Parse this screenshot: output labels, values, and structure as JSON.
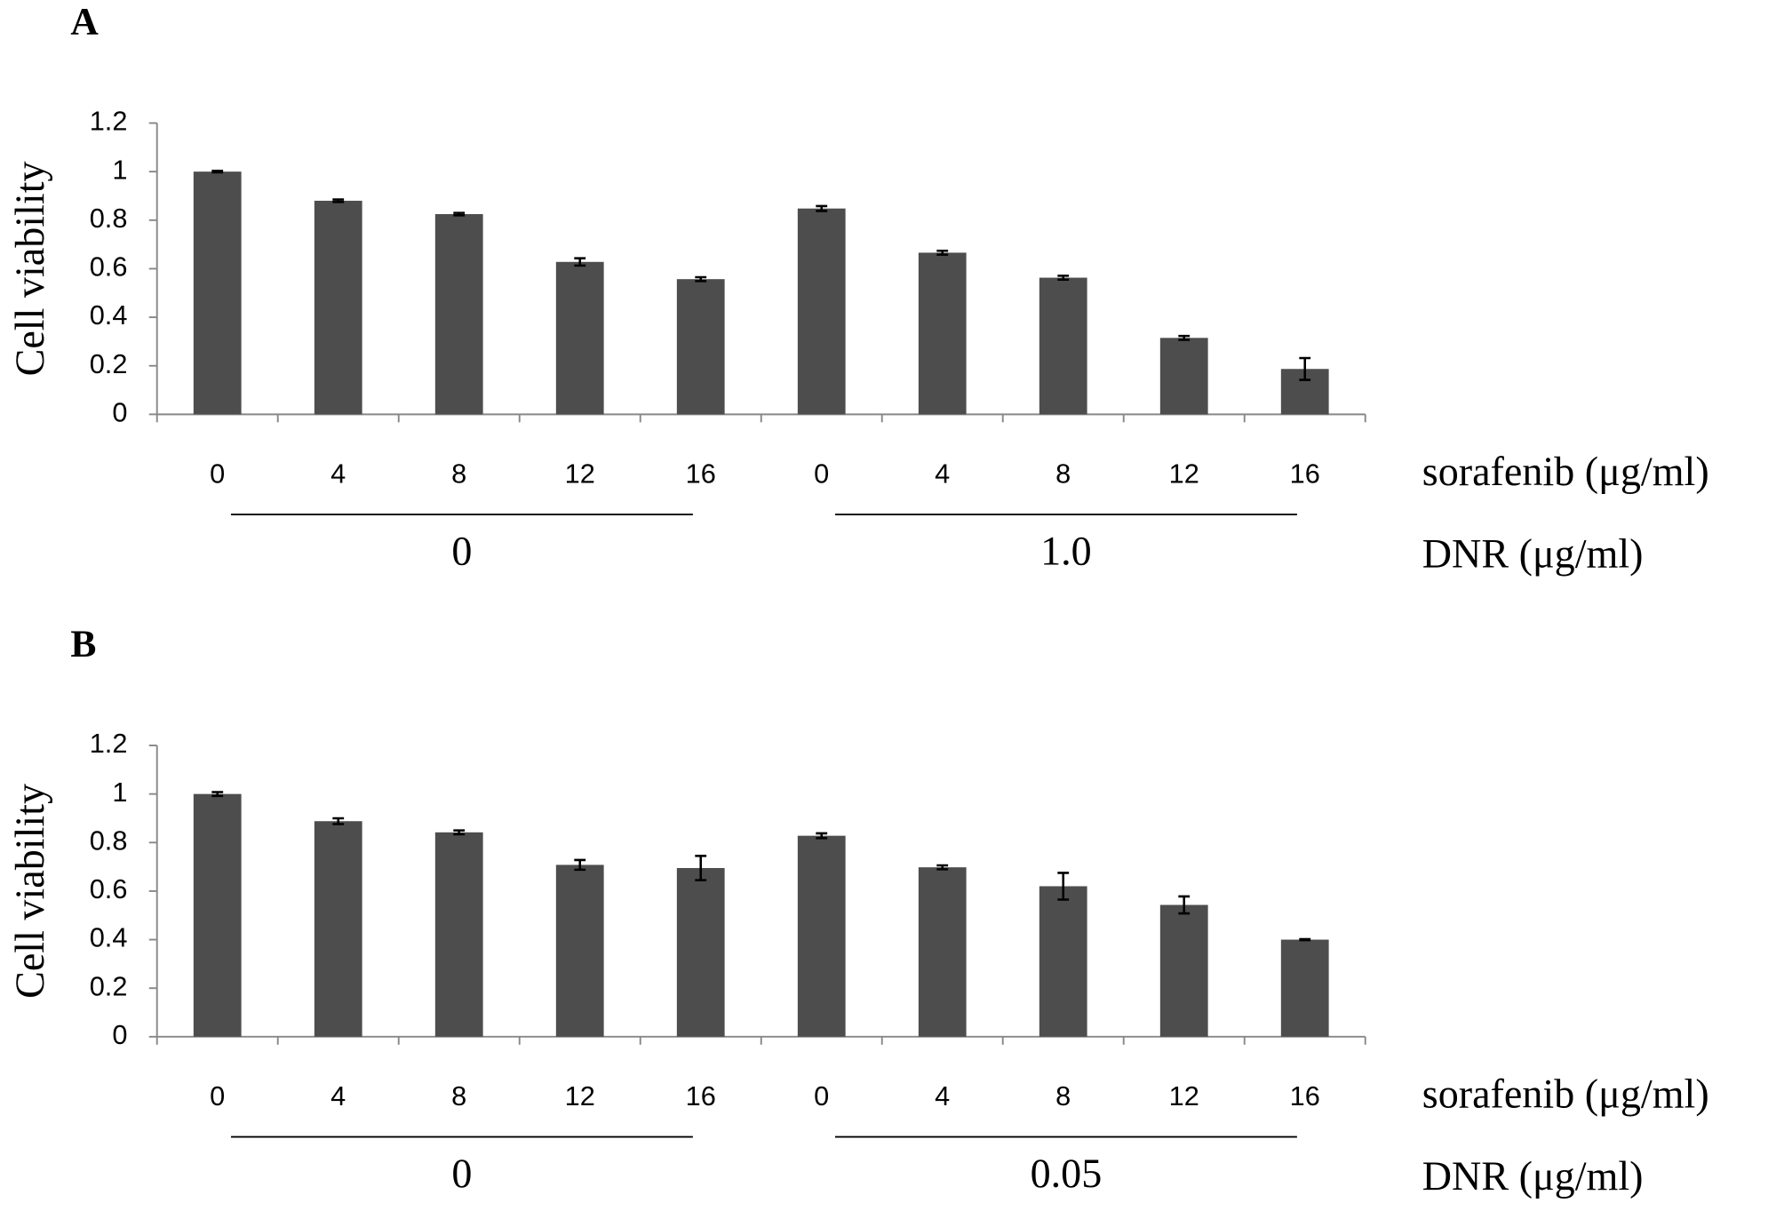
{
  "chart_data": [
    {
      "type": "bar",
      "panel_label": "A",
      "y_label": "Cell viability",
      "x_label": "sorafenib (μg/ml)",
      "group_axis_label": "DNR (μg/ml)",
      "categories": [
        "0",
        "4",
        "8",
        "12",
        "16",
        "0",
        "4",
        "8",
        "12",
        "16"
      ],
      "group_labels": [
        "0",
        "1.0"
      ],
      "series": [
        {
          "color": "#4d4d4d",
          "values": [
            1.0,
            0.88,
            0.825,
            0.628,
            0.557,
            0.848,
            0.666,
            0.563,
            0.315,
            0.187
          ],
          "errors": [
            0.003,
            0.005,
            0.005,
            0.015,
            0.008,
            0.01,
            0.008,
            0.008,
            0.008,
            0.045
          ]
        }
      ],
      "ylim": [
        0,
        1.2
      ],
      "yticks": [
        0,
        0.2,
        0.4,
        0.6,
        0.8,
        1,
        1.2
      ]
    },
    {
      "type": "bar",
      "panel_label": "B",
      "y_label": "Cell viability",
      "x_label": "sorafenib (μg/ml)",
      "group_axis_label": "DNR (μg/ml)",
      "categories": [
        "0",
        "4",
        "8",
        "12",
        "16",
        "0",
        "4",
        "8",
        "12",
        "16"
      ],
      "group_labels": [
        "0",
        "0.05"
      ],
      "series": [
        {
          "color": "#4d4d4d",
          "values": [
            1.0,
            0.888,
            0.842,
            0.708,
            0.695,
            0.828,
            0.698,
            0.62,
            0.543,
            0.4
          ],
          "errors": [
            0.008,
            0.012,
            0.008,
            0.02,
            0.05,
            0.01,
            0.008,
            0.055,
            0.035,
            0.002
          ]
        }
      ],
      "ylim": [
        0,
        1.2
      ],
      "yticks": [
        0,
        0.2,
        0.4,
        0.6,
        0.8,
        1,
        1.2
      ]
    }
  ]
}
